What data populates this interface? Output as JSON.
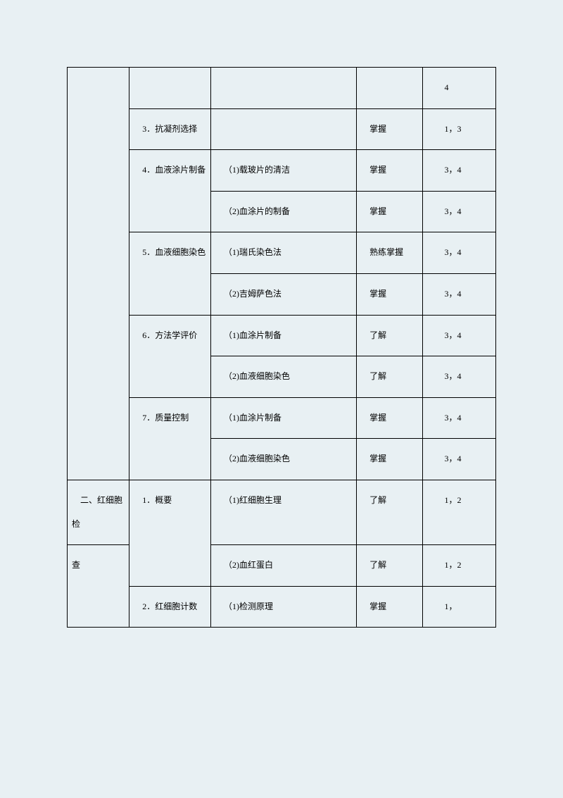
{
  "rows": [
    {
      "c1": "",
      "c2": "",
      "c3": "",
      "c4": "",
      "c5": "        4"
    },
    {
      "c1": "",
      "c2": "    3．抗凝剂选择",
      "c3": "",
      "c4": "    掌握",
      "c5": "        1，3"
    },
    {
      "c1": "",
      "c2": "    4．血液涂片制备",
      "c3": "    （1)载玻片的清洁",
      "c4": "    掌握",
      "c5": "        3，4"
    },
    {
      "c1": "",
      "c2": "",
      "c3": "    （2)血涂片的制备",
      "c4": "    掌握",
      "c5": "        3，4"
    },
    {
      "c1": "",
      "c2": "    5．血液细胞染色",
      "c3": "    （1)瑞氏染色法",
      "c4": "    熟练掌握",
      "c5": "        3，4"
    },
    {
      "c1": "",
      "c2": "",
      "c3": "    （2)吉姆萨色法",
      "c4": "    掌握",
      "c5": "        3，4"
    },
    {
      "c1": "",
      "c2": "    6．方法学评价",
      "c3": "    （1)血涂片制备",
      "c4": "    了解",
      "c5": "        3，4"
    },
    {
      "c1": "",
      "c2": "",
      "c3": "    （2)血液细胞染色",
      "c4": "    了解",
      "c5": "        3，4"
    },
    {
      "c1": "",
      "c2": "    7．质量控制",
      "c3": "    （1)血涂片制备",
      "c4": "    掌握",
      "c5": "        3，4"
    },
    {
      "c1": "",
      "c2": "",
      "c3": "    （2)血液细胞染色",
      "c4": "    掌握",
      "c5": "        3，4"
    },
    {
      "c1": "    二、红细胞检",
      "c2": "    1．概要",
      "c3": "    （1)红细胞生理",
      "c4": "    了解",
      "c5": "        1，2"
    },
    {
      "c1": "查",
      "c2": "",
      "c3": "    （2)血红蛋白",
      "c4": "    了解",
      "c5": "        1，2"
    },
    {
      "c1": "",
      "c2": "    2．红细胞计数",
      "c3": "    （1)检测原理",
      "c4": "    掌握",
      "c5": "        1，"
    }
  ],
  "spans": {
    "col1_span1": 10,
    "col1_span2": 2,
    "col2_span_r3": 2,
    "col2_span_r5": 2,
    "col2_span_r7": 2,
    "col2_span_r9": 2,
    "col2_span_r11": 2
  }
}
